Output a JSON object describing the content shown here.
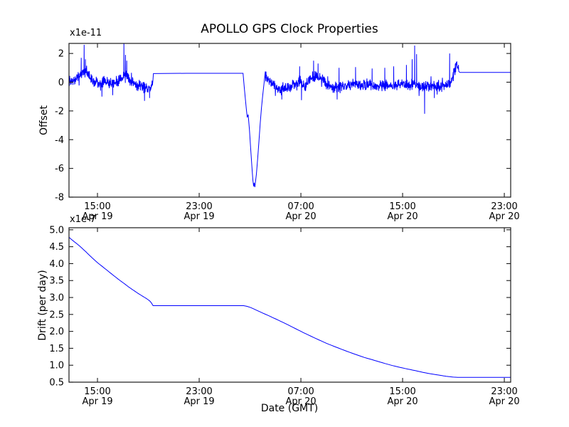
{
  "title": "APOLLO GPS Clock Properties",
  "line_color": "#0000ff",
  "frame_color": "#1a1a1a",
  "chart_data": [
    {
      "type": "line",
      "id": "offset",
      "ylabel": "Offset",
      "scale_label": "x1e-11",
      "ylim": [
        -8,
        2.7
      ],
      "xlim_hours": [
        -2.24,
        32.5
      ],
      "yticks": [
        {
          "v": 2,
          "label": "2"
        },
        {
          "v": 0,
          "label": "0"
        },
        {
          "v": -2,
          "label": "-2"
        },
        {
          "v": -4,
          "label": "-4"
        },
        {
          "v": -6,
          "label": "-6"
        },
        {
          "v": -8,
          "label": "-8"
        }
      ],
      "xticks": [
        {
          "t": 0,
          "time": "15:00",
          "date": "Apr 19"
        },
        {
          "t": 8,
          "time": "23:00",
          "date": "Apr 19"
        },
        {
          "t": 16,
          "time": "07:00",
          "date": "Apr 20"
        },
        {
          "t": 24,
          "time": "15:00",
          "date": "Apr 20"
        },
        {
          "t": 32,
          "time": "23:00",
          "date": "Apr 20"
        }
      ],
      "segments": [
        {
          "kind": "noise",
          "t0": -2.24,
          "t1": 4.33,
          "noise": 0.28,
          "base": [
            [
              -2.24,
              0.0
            ],
            [
              -1.8,
              0.1
            ],
            [
              -1.4,
              0.45
            ],
            [
              -1.05,
              0.8
            ],
            [
              -0.75,
              0.5
            ],
            [
              -0.4,
              0.1
            ],
            [
              0.1,
              -0.05
            ],
            [
              0.6,
              0.05
            ],
            [
              1.1,
              -0.1
            ],
            [
              1.6,
              0.05
            ],
            [
              1.95,
              0.3
            ],
            [
              2.15,
              0.5
            ],
            [
              2.4,
              0.25
            ],
            [
              2.8,
              0.05
            ],
            [
              3.2,
              -0.2
            ],
            [
              3.6,
              -0.3
            ],
            [
              4.0,
              -0.35
            ],
            [
              4.33,
              -0.2
            ]
          ],
          "spikes": [
            [
              -1.28,
              1.7
            ],
            [
              -1.05,
              2.6
            ],
            [
              -0.95,
              1.6
            ],
            [
              0.35,
              -1.0
            ],
            [
              1.2,
              -0.9
            ],
            [
              2.08,
              2.7
            ],
            [
              2.2,
              1.9
            ],
            [
              2.3,
              1.5
            ],
            [
              3.7,
              -1.3
            ],
            [
              4.1,
              -1.1
            ]
          ]
        },
        {
          "kind": "path",
          "points": [
            [
              4.33,
              -0.2
            ],
            [
              4.36,
              0.12
            ],
            [
              4.4,
              0.6
            ],
            [
              7.0,
              0.62
            ],
            [
              11.45,
              0.62
            ]
          ]
        },
        {
          "kind": "path",
          "points": [
            [
              11.45,
              0.62
            ],
            [
              11.55,
              -0.4
            ],
            [
              11.7,
              -1.8
            ],
            [
              11.78,
              -2.45
            ],
            [
              11.85,
              -2.25
            ],
            [
              11.95,
              -3.3
            ],
            [
              12.05,
              -4.6
            ],
            [
              12.15,
              -5.9
            ],
            [
              12.22,
              -6.8
            ],
            [
              12.28,
              -7.25
            ],
            [
              12.33,
              -7.0
            ],
            [
              12.38,
              -7.3
            ],
            [
              12.5,
              -6.4
            ],
            [
              12.6,
              -5.3
            ],
            [
              12.7,
              -4.1
            ],
            [
              12.8,
              -2.9
            ],
            [
              12.9,
              -1.8
            ],
            [
              13.0,
              -0.9
            ],
            [
              13.1,
              -0.1
            ],
            [
              13.2,
              0.75
            ]
          ]
        },
        {
          "kind": "noise",
          "t0": 13.2,
          "t1": 28.42,
          "noise": 0.28,
          "base": [
            [
              13.2,
              0.35
            ],
            [
              13.6,
              0.0
            ],
            [
              14.1,
              -0.4
            ],
            [
              14.6,
              -0.55
            ],
            [
              15.1,
              -0.35
            ],
            [
              15.5,
              -0.1
            ],
            [
              15.9,
              0.1
            ],
            [
              16.3,
              -0.35
            ],
            [
              16.7,
              0.25
            ],
            [
              17.1,
              0.4
            ],
            [
              17.5,
              0.3
            ],
            [
              17.9,
              -0.05
            ],
            [
              18.4,
              -0.25
            ],
            [
              18.9,
              -0.4
            ],
            [
              19.4,
              -0.15
            ],
            [
              19.9,
              -0.2
            ],
            [
              20.4,
              -0.1
            ],
            [
              20.9,
              -0.25
            ],
            [
              21.4,
              -0.15
            ],
            [
              21.9,
              -0.3
            ],
            [
              22.4,
              -0.2
            ],
            [
              22.9,
              -0.25
            ],
            [
              23.4,
              -0.2
            ],
            [
              23.9,
              -0.1
            ],
            [
              24.4,
              -0.25
            ],
            [
              24.9,
              -0.1
            ],
            [
              25.4,
              -0.3
            ],
            [
              25.9,
              -0.35
            ],
            [
              26.4,
              -0.2
            ],
            [
              26.9,
              -0.3
            ],
            [
              27.3,
              -0.25
            ],
            [
              27.7,
              -0.1
            ],
            [
              27.95,
              0.3
            ],
            [
              28.15,
              1.1
            ],
            [
              28.3,
              1.2
            ],
            [
              28.42,
              0.8
            ]
          ],
          "spikes": [
            [
              14.5,
              -1.2
            ],
            [
              15.9,
              1.1
            ],
            [
              16.05,
              -1.25
            ],
            [
              17.0,
              1.5
            ],
            [
              17.35,
              1.3
            ],
            [
              18.85,
              -1.2
            ],
            [
              19.0,
              1.0
            ],
            [
              20.3,
              1.05
            ],
            [
              21.6,
              0.95
            ],
            [
              22.6,
              1.0
            ],
            [
              23.3,
              1.1
            ],
            [
              24.3,
              1.2
            ],
            [
              24.75,
              1.6
            ],
            [
              24.95,
              2.55
            ],
            [
              25.1,
              1.95
            ],
            [
              25.73,
              -2.2
            ],
            [
              26.5,
              -1.1
            ],
            [
              27.7,
              2.0
            ]
          ]
        },
        {
          "kind": "path",
          "points": [
            [
              28.42,
              0.75
            ],
            [
              28.5,
              0.68
            ],
            [
              32.5,
              0.68
            ]
          ]
        }
      ]
    },
    {
      "type": "line",
      "id": "drift",
      "ylabel": "Drift (per day)",
      "xlabel": "Date (GMT)",
      "scale_label": "x1e-7",
      "ylim": [
        0.5,
        5.06
      ],
      "xlim_hours": [
        -2.24,
        32.5
      ],
      "yticks": [
        {
          "v": 5.0,
          "label": "5.0"
        },
        {
          "v": 4.5,
          "label": "4.5"
        },
        {
          "v": 4.0,
          "label": "4.0"
        },
        {
          "v": 3.5,
          "label": "3.5"
        },
        {
          "v": 3.0,
          "label": "3.0"
        },
        {
          "v": 2.5,
          "label": "2.5"
        },
        {
          "v": 2.0,
          "label": "2.0"
        },
        {
          "v": 1.5,
          "label": "1.5"
        },
        {
          "v": 1.0,
          "label": "1.0"
        },
        {
          "v": 0.5,
          "label": "0.5"
        }
      ],
      "xticks": [
        {
          "t": 0,
          "time": "15:00",
          "date": "Apr 19"
        },
        {
          "t": 8,
          "time": "23:00",
          "date": "Apr 19"
        },
        {
          "t": 16,
          "time": "07:00",
          "date": "Apr 20"
        },
        {
          "t": 24,
          "time": "15:00",
          "date": "Apr 20"
        },
        {
          "t": 32,
          "time": "23:00",
          "date": "Apr 20"
        }
      ],
      "segments": [
        {
          "kind": "path",
          "smooth": true,
          "points": [
            [
              -2.24,
              4.78
            ],
            [
              -2.0,
              4.7
            ],
            [
              -1.5,
              4.55
            ],
            [
              -1.0,
              4.38
            ],
            [
              -0.5,
              4.2
            ],
            [
              0,
              4.03
            ],
            [
              0.5,
              3.88
            ],
            [
              1,
              3.73
            ],
            [
              1.5,
              3.58
            ],
            [
              2,
              3.44
            ],
            [
              2.5,
              3.3
            ],
            [
              3,
              3.17
            ],
            [
              3.5,
              3.05
            ],
            [
              4,
              2.93
            ],
            [
              4.2,
              2.86
            ],
            [
              4.37,
              2.76
            ]
          ]
        },
        {
          "kind": "path",
          "points": [
            [
              4.37,
              2.76
            ],
            [
              11.5,
              2.76
            ]
          ]
        },
        {
          "kind": "path",
          "smooth": true,
          "points": [
            [
              11.5,
              2.76
            ],
            [
              12,
              2.71
            ],
            [
              13,
              2.54
            ],
            [
              14,
              2.37
            ],
            [
              15,
              2.19
            ],
            [
              16,
              2.0
            ],
            [
              17,
              1.82
            ],
            [
              18,
              1.65
            ],
            [
              19,
              1.5
            ],
            [
              20,
              1.36
            ],
            [
              21,
              1.23
            ],
            [
              22,
              1.12
            ],
            [
              23,
              1.01
            ],
            [
              24,
              0.92
            ],
            [
              25,
              0.84
            ],
            [
              26,
              0.76
            ],
            [
              27,
              0.7
            ],
            [
              27.5,
              0.67
            ],
            [
              28,
              0.65
            ],
            [
              28.5,
              0.64
            ]
          ]
        },
        {
          "kind": "path",
          "points": [
            [
              28.5,
              0.64
            ],
            [
              32.5,
              0.64
            ]
          ]
        }
      ]
    }
  ]
}
